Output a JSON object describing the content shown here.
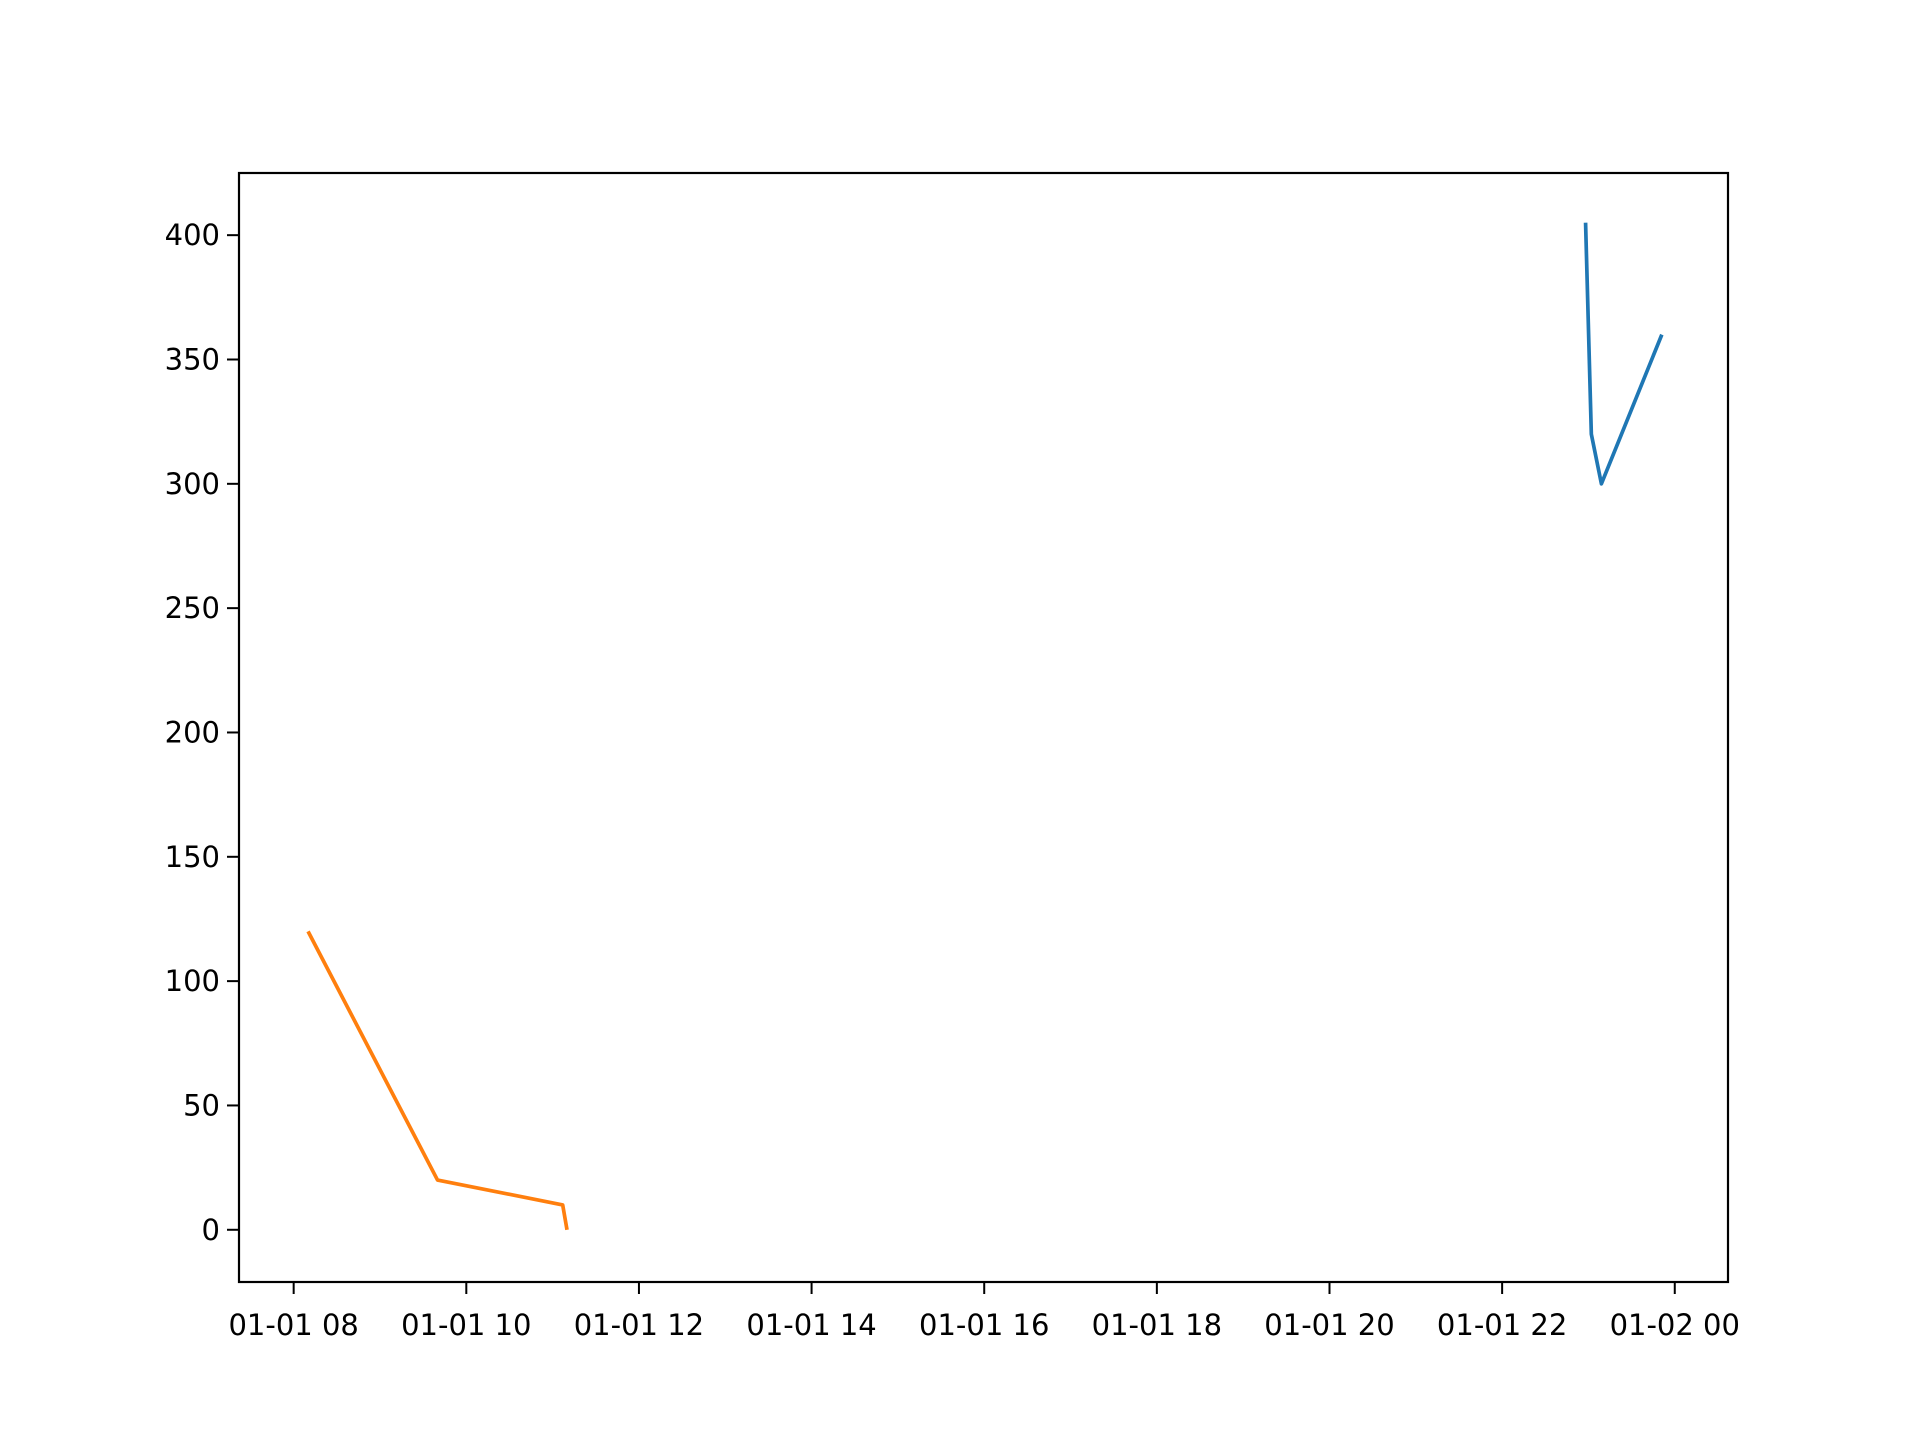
{
  "chart_data": {
    "type": "line",
    "title": "",
    "xlabel": "",
    "ylabel": "",
    "x_axis_type": "datetime",
    "xlim": [
      "2000-01-01T07:22",
      "2000-01-02T00:37"
    ],
    "ylim": [
      -21,
      425
    ],
    "grid": false,
    "legend": "none",
    "x_ticks": [
      {
        "value": "2000-01-01T08:00",
        "label": "01-01 08"
      },
      {
        "value": "2000-01-01T10:00",
        "label": "01-01 10"
      },
      {
        "value": "2000-01-01T12:00",
        "label": "01-01 12"
      },
      {
        "value": "2000-01-01T14:00",
        "label": "01-01 14"
      },
      {
        "value": "2000-01-01T16:00",
        "label": "01-01 16"
      },
      {
        "value": "2000-01-01T18:00",
        "label": "01-01 18"
      },
      {
        "value": "2000-01-01T20:00",
        "label": "01-01 20"
      },
      {
        "value": "2000-01-01T22:00",
        "label": "01-01 22"
      },
      {
        "value": "2000-01-02T00:00",
        "label": "01-02 00"
      }
    ],
    "y_ticks": [
      {
        "value": 0,
        "label": "0"
      },
      {
        "value": 50,
        "label": "50"
      },
      {
        "value": 100,
        "label": "100"
      },
      {
        "value": 150,
        "label": "150"
      },
      {
        "value": 200,
        "label": "200"
      },
      {
        "value": 250,
        "label": "250"
      },
      {
        "value": 300,
        "label": "300"
      },
      {
        "value": 350,
        "label": "350"
      },
      {
        "value": 400,
        "label": "400"
      }
    ],
    "series": [
      {
        "color": "#1f77b4",
        "points": [
          {
            "x": "2000-01-01T22:58",
            "y": 405
          },
          {
            "x": "2000-01-01T23:02",
            "y": 320
          },
          {
            "x": "2000-01-01T23:09",
            "y": 300
          },
          {
            "x": "2000-01-01T23:51",
            "y": 360
          }
        ]
      },
      {
        "color": "#ff7f0e",
        "points": [
          {
            "x": "2000-01-01T08:10",
            "y": 120
          },
          {
            "x": "2000-01-01T09:40",
            "y": 20
          },
          {
            "x": "2000-01-01T11:07",
            "y": 10
          },
          {
            "x": "2000-01-01T11:10",
            "y": 0
          }
        ]
      }
    ]
  }
}
